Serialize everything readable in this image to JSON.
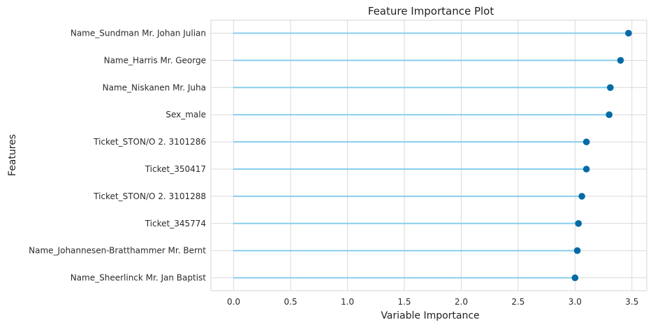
{
  "chart_data": {
    "type": "lollipop",
    "title": "Feature Importance Plot",
    "xlabel": "Variable Importance",
    "ylabel": "Features",
    "xlim": [
      -0.2,
      3.63
    ],
    "xticks": [
      0.0,
      0.5,
      1.0,
      1.5,
      2.0,
      2.5,
      3.0,
      3.5
    ],
    "xtick_labels": [
      "0.0",
      "0.5",
      "1.0",
      "1.5",
      "2.0",
      "2.5",
      "3.0",
      "3.5"
    ],
    "grid": true,
    "categories": [
      "Name_Sundman Mr. Johan Julian",
      "Name_Harris Mr. George",
      "Name_Niskanen Mr. Juha",
      "Sex_male",
      "Ticket_STON/O 2. 3101286",
      "Ticket_350417",
      "Ticket_STON/O 2. 3101288",
      "Ticket_345774",
      "Name_Johannesen-Bratthammer Mr. Bernt",
      "Name_Sheerlinck Mr. Jan Baptist"
    ],
    "values": [
      3.47,
      3.4,
      3.31,
      3.3,
      3.1,
      3.1,
      3.06,
      3.03,
      3.02,
      3.0
    ],
    "colors": {
      "stem": "#87ceeb",
      "point": "#006ba4",
      "grid": "#d9d9d9",
      "frame": "#d5d5d5"
    }
  }
}
